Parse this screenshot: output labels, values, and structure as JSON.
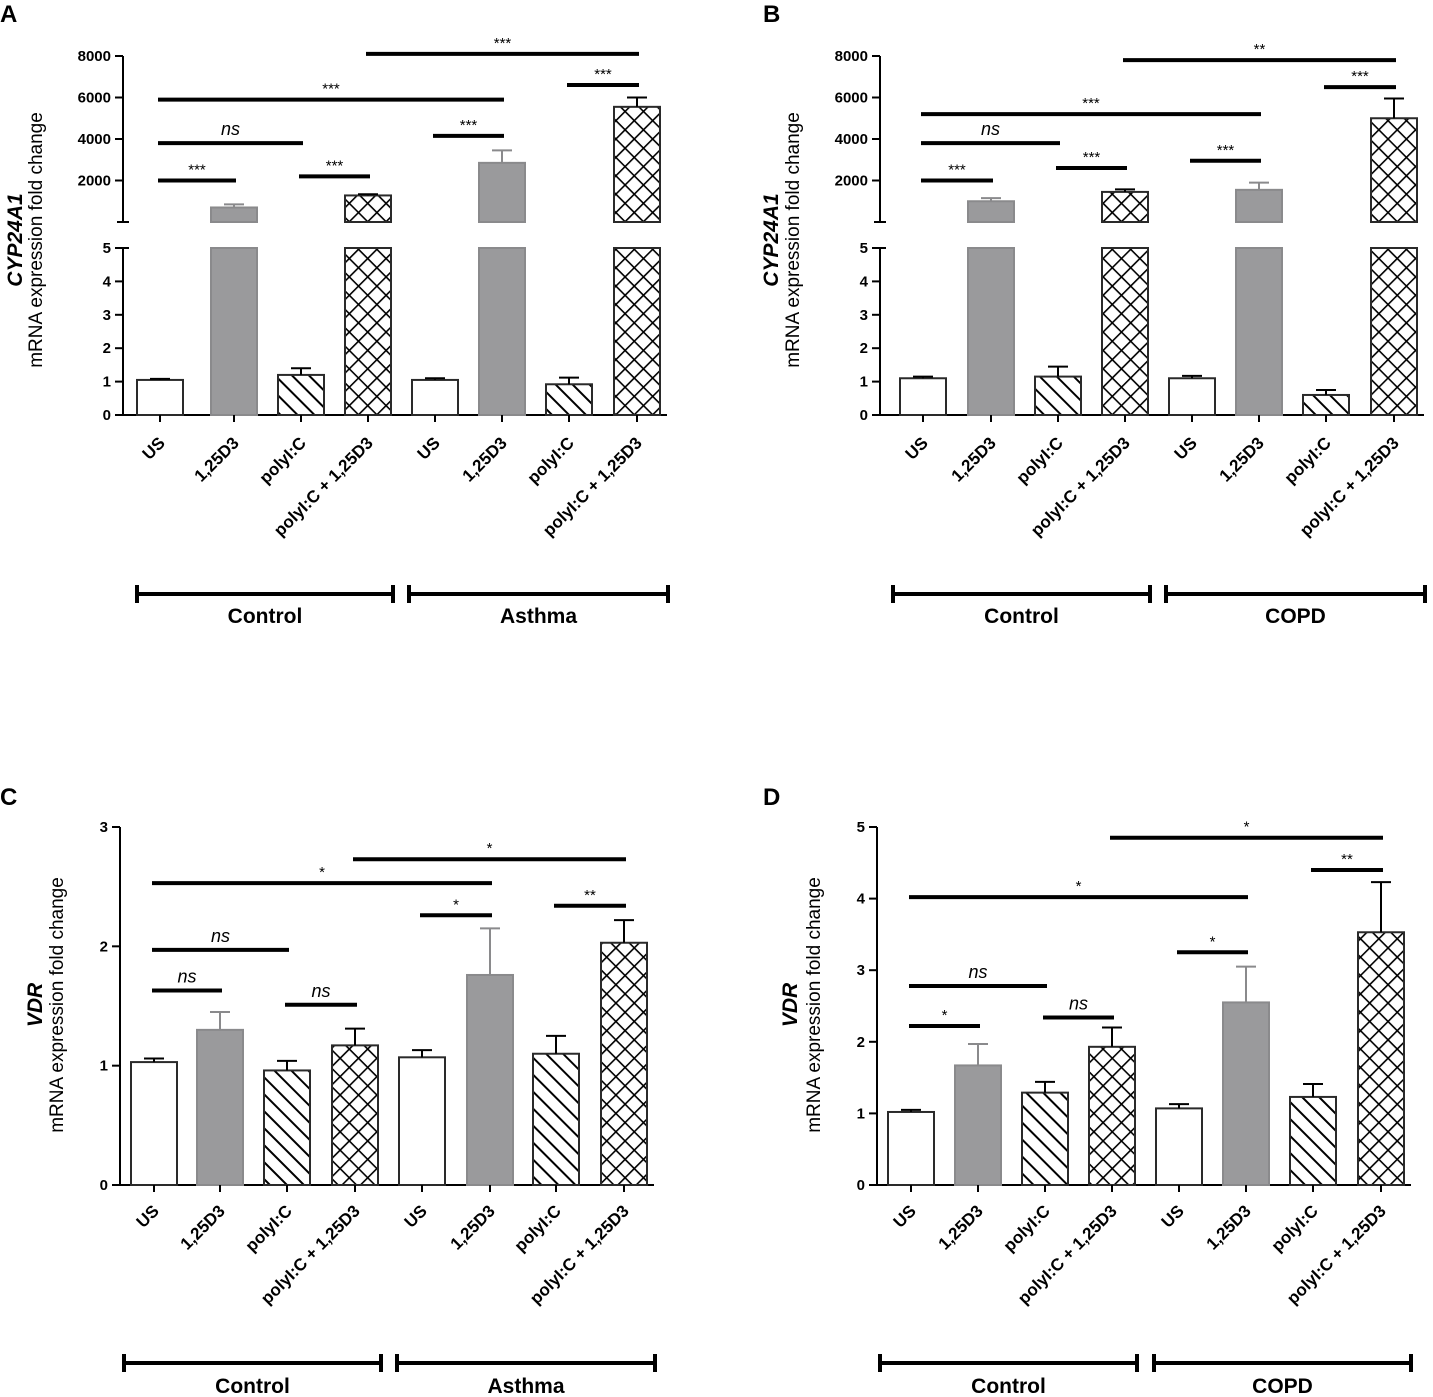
{
  "categories": [
    "US",
    "1,25D3",
    "polyI:C",
    "polyI:C + 1,25D3",
    "US",
    "1,25D3",
    "polyI:C",
    "polyI:C + 1,25D3"
  ],
  "colors": {
    "gray": "#9a9a9c",
    "white": "#ffffff",
    "line": "#000000",
    "bar_edge": "#2a2a2a"
  },
  "chart_data": [
    {
      "panel": "A",
      "type": "bar",
      "broken_axis": true,
      "ylabel_gene": "CYP24A1",
      "ylabel": "mRNA expression fold change",
      "groups": [
        "Control",
        "Asthma"
      ],
      "categories": [
        "US",
        "1,25D3",
        "polyI:C",
        "polyI:C + 1,25D3",
        "US",
        "1,25D3",
        "polyI:C",
        "polyI:C + 1,25D3"
      ],
      "patterns": [
        "white",
        "gray",
        "hatch",
        "cross",
        "white",
        "gray",
        "hatch",
        "cross"
      ],
      "values": [
        1.05,
        700,
        1.2,
        1280,
        1.05,
        2850,
        0.92,
        5550
      ],
      "errors": [
        0.03,
        150,
        0.2,
        60,
        0.05,
        600,
        0.2,
        450
      ],
      "ylim_low": [
        0,
        5
      ],
      "yticks_low": [
        0,
        1,
        2,
        3,
        4,
        5
      ],
      "ylim_high": [
        0,
        8000
      ],
      "yticks_high": [
        2000,
        4000,
        6000,
        8000
      ],
      "comparisons": [
        {
          "a": 0,
          "b": 1,
          "label": "***",
          "y": 2000
        },
        {
          "a": 0,
          "b": 2,
          "label": "ns",
          "y": 3800
        },
        {
          "a": 2,
          "b": 3,
          "label": "***",
          "y": 2200
        },
        {
          "a": 4,
          "b": 5,
          "label": "***",
          "y": 4150
        },
        {
          "a": 6,
          "b": 7,
          "label": "***",
          "y": 6600
        },
        {
          "a": 0,
          "b": 5,
          "label": "***",
          "y": 5900
        },
        {
          "a": 3,
          "b": 7,
          "label": "***",
          "y": 8100
        }
      ]
    },
    {
      "panel": "B",
      "type": "bar",
      "broken_axis": true,
      "ylabel_gene": "CYP24A1",
      "ylabel": "mRNA expression fold change",
      "groups": [
        "Control",
        "COPD"
      ],
      "categories": [
        "US",
        "1,25D3",
        "polyI:C",
        "polyI:C + 1,25D3",
        "US",
        "1,25D3",
        "polyI:C",
        "polyI:C + 1,25D3"
      ],
      "patterns": [
        "white",
        "gray",
        "hatch",
        "cross",
        "white",
        "gray",
        "hatch",
        "cross"
      ],
      "values": [
        1.1,
        1000,
        1.15,
        1450,
        1.1,
        1550,
        0.6,
        5000
      ],
      "errors": [
        0.05,
        150,
        0.3,
        120,
        0.07,
        350,
        0.15,
        950
      ],
      "ylim_low": [
        0,
        5
      ],
      "yticks_low": [
        0,
        1,
        2,
        3,
        4,
        5
      ],
      "ylim_high": [
        0,
        8000
      ],
      "yticks_high": [
        2000,
        4000,
        6000,
        8000
      ],
      "comparisons": [
        {
          "a": 0,
          "b": 1,
          "label": "***",
          "y": 2000
        },
        {
          "a": 0,
          "b": 2,
          "label": "ns",
          "y": 3800
        },
        {
          "a": 2,
          "b": 3,
          "label": "***",
          "y": 2600
        },
        {
          "a": 4,
          "b": 5,
          "label": "***",
          "y": 2950
        },
        {
          "a": 6,
          "b": 7,
          "label": "***",
          "y": 6500
        },
        {
          "a": 0,
          "b": 5,
          "label": "***",
          "y": 5200
        },
        {
          "a": 3,
          "b": 7,
          "label": "**",
          "y": 7800
        }
      ]
    },
    {
      "panel": "C",
      "type": "bar",
      "broken_axis": false,
      "ylabel_gene": "VDR",
      "ylabel": "mRNA expression fold change",
      "groups": [
        "Control",
        "Asthma"
      ],
      "categories": [
        "US",
        "1,25D3",
        "polyI:C",
        "polyI:C + 1,25D3",
        "US",
        "1,25D3",
        "polyI:C",
        "polyI:C + 1,25D3"
      ],
      "patterns": [
        "white",
        "gray",
        "hatch",
        "cross",
        "white",
        "gray",
        "hatch",
        "cross"
      ],
      "values": [
        1.03,
        1.3,
        0.96,
        1.17,
        1.07,
        1.76,
        1.1,
        2.03
      ],
      "errors": [
        0.03,
        0.15,
        0.08,
        0.14,
        0.06,
        0.39,
        0.15,
        0.19
      ],
      "ylim": [
        0,
        3
      ],
      "yticks": [
        0,
        1,
        2,
        3
      ],
      "comparisons": [
        {
          "a": 0,
          "b": 1,
          "label": "ns",
          "y": 1.63
        },
        {
          "a": 0,
          "b": 2,
          "label": "ns",
          "y": 1.97
        },
        {
          "a": 2,
          "b": 3,
          "label": "ns",
          "y": 1.51
        },
        {
          "a": 4,
          "b": 5,
          "label": "*",
          "y": 2.26
        },
        {
          "a": 6,
          "b": 7,
          "label": "**",
          "y": 2.34
        },
        {
          "a": 0,
          "b": 5,
          "label": "*",
          "y": 2.53
        },
        {
          "a": 3,
          "b": 7,
          "label": "*",
          "y": 2.73
        }
      ]
    },
    {
      "panel": "D",
      "type": "bar",
      "broken_axis": false,
      "ylabel_gene": "VDR",
      "ylabel": "mRNA expression fold change",
      "groups": [
        "Control",
        "COPD"
      ],
      "categories": [
        "US",
        "1,25D3",
        "polyI:C",
        "polyI:C + 1,25D3",
        "US",
        "1,25D3",
        "polyI:C",
        "polyI:C + 1,25D3"
      ],
      "patterns": [
        "white",
        "gray",
        "hatch",
        "cross",
        "white",
        "gray",
        "hatch",
        "cross"
      ],
      "values": [
        1.02,
        1.67,
        1.29,
        1.93,
        1.07,
        2.55,
        1.23,
        3.53
      ],
      "errors": [
        0.03,
        0.3,
        0.15,
        0.27,
        0.06,
        0.5,
        0.18,
        0.7
      ],
      "ylim": [
        0,
        5
      ],
      "yticks": [
        0,
        1,
        2,
        3,
        4,
        5
      ],
      "comparisons": [
        {
          "a": 0,
          "b": 1,
          "label": "*",
          "y": 2.22
        },
        {
          "a": 0,
          "b": 2,
          "label": "ns",
          "y": 2.78
        },
        {
          "a": 2,
          "b": 3,
          "label": "ns",
          "y": 2.34
        },
        {
          "a": 4,
          "b": 5,
          "label": "*",
          "y": 3.25
        },
        {
          "a": 6,
          "b": 7,
          "label": "**",
          "y": 4.4
        },
        {
          "a": 0,
          "b": 5,
          "label": "*",
          "y": 4.02
        },
        {
          "a": 3,
          "b": 7,
          "label": "*",
          "y": 4.85
        }
      ]
    }
  ]
}
